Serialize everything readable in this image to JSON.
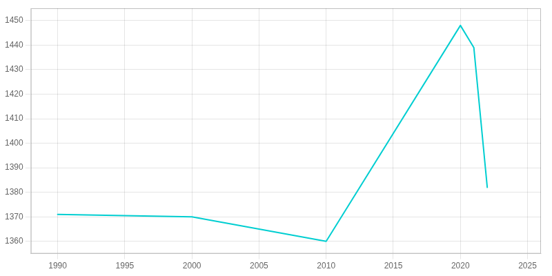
{
  "chart_data": {
    "type": "line",
    "x": [
      1990,
      2000,
      2010,
      2020,
      2021,
      2022
    ],
    "values": [
      1371,
      1370,
      1360,
      1448,
      1439,
      1382
    ],
    "color": "#00CED1",
    "xlim": [
      1988,
      2026
    ],
    "ylim": [
      1355,
      1455
    ],
    "xticks": [
      1990,
      1995,
      2000,
      2005,
      2010,
      2015,
      2020,
      2025
    ],
    "yticks": [
      1360,
      1370,
      1380,
      1390,
      1400,
      1410,
      1420,
      1430,
      1440,
      1450
    ],
    "grid": true
  }
}
